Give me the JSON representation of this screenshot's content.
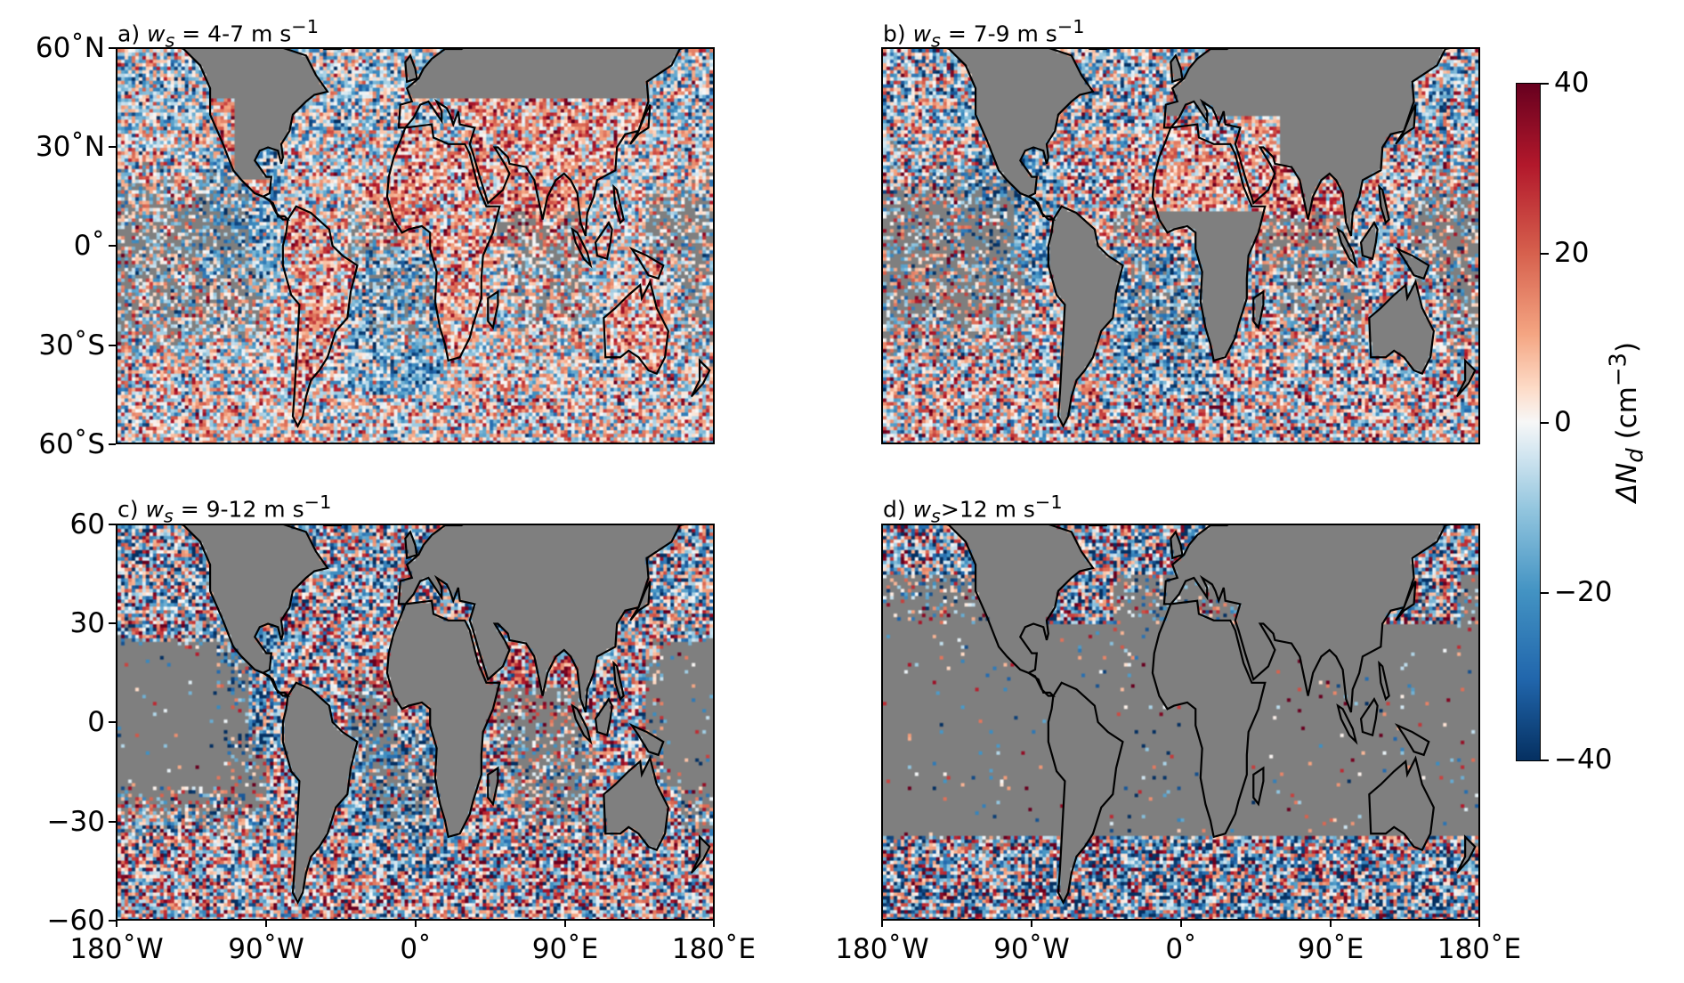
{
  "panels": [
    {
      "id": "a",
      "label_prefix": "a) ",
      "ws_symbol": "w",
      "ws_sub": "s",
      "label_rest": " = 4-7 m s",
      "label_exp": "−1",
      "land_fraction_ocean_missing": 0.25
    },
    {
      "id": "b",
      "label_prefix": "b) ",
      "ws_symbol": "w",
      "ws_sub": "s",
      "label_rest": " = 7-9 m s",
      "label_exp": "−1",
      "land_fraction_ocean_missing": 0.3
    },
    {
      "id": "c",
      "label_prefix": "c) ",
      "ws_symbol": "w",
      "ws_sub": "s",
      "label_rest": " = 9-12 m s",
      "label_exp": "−1",
      "land_fraction_ocean_missing": 0.45
    },
    {
      "id": "d",
      "label_prefix": "d) ",
      "ws_symbol": "w",
      "ws_sub": "s",
      "label_rest": ">12 m s",
      "label_exp": "−1",
      "land_fraction_ocean_missing": 0.7
    }
  ],
  "axes": {
    "top_yticks": [
      "60˚N",
      "30˚N",
      "0˚",
      "30˚S",
      "60˚S"
    ],
    "bottom_yticks": [
      "60",
      "30",
      "0",
      "−30",
      "−60"
    ],
    "xticks": [
      "180˚W",
      "90˚W",
      "0˚",
      "90˚E",
      "180˚E"
    ],
    "lon_range": [
      -180,
      180
    ],
    "lat_range": [
      -60,
      60
    ]
  },
  "colorbar": {
    "title_main": "ΔN",
    "title_sub": "d",
    "title_unit": " (cm",
    "title_exp": "−3",
    "title_close": ")",
    "ticks": [
      "40",
      "20",
      "0",
      "−20",
      "−40"
    ],
    "range": [
      -40,
      40
    ],
    "colormap": "RdBu_r",
    "land_color": "#7f7f7f"
  }
}
